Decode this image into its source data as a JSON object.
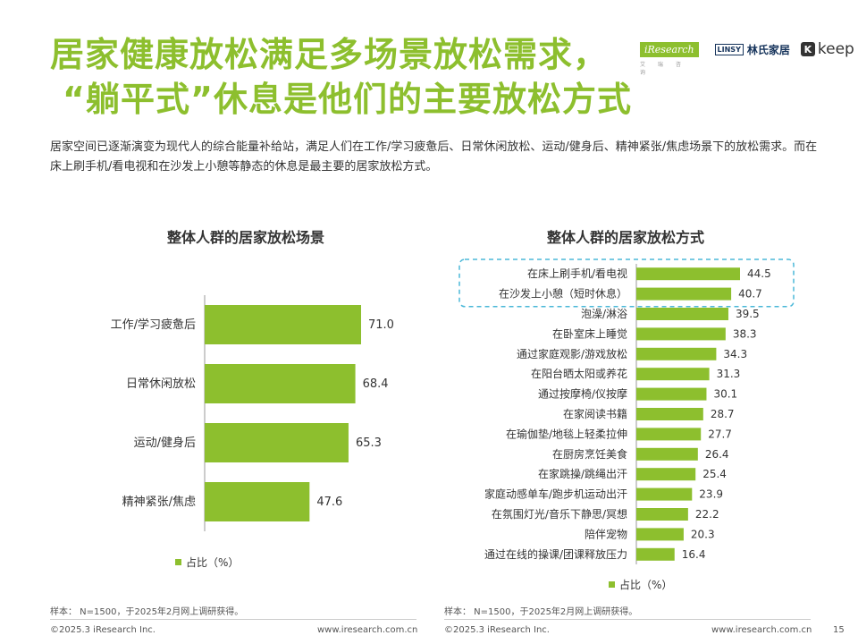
{
  "header": {
    "title_line1": "居家健康放松满足多场景放松需求，",
    "title_line2": "“躺平式”休息是他们的主要放松方式",
    "subtitle": "居家空间已逐渐演变为现代人的综合能量补给站，满足人们在工作/学习疲惫后、日常休闲放松、运动/健身后、精神紧张/焦虑场景下的放松需求。而在床上刷手机/看电视和在沙发上小憩等静态的休息是最主要的居家放松方式。"
  },
  "logos": {
    "iresearch": "iResearch",
    "iresearch_sub": "艾 瑞 咨 询",
    "linsy_box": "LINSY",
    "linsy_text": "林氏家居",
    "keep_k": "K",
    "keep_text": "keep"
  },
  "colors": {
    "accent": "#8DBF2E",
    "highlight_border": "#4BB8D8"
  },
  "left": {
    "note": "样本： N=1500，于2025年2月网上调研获得。",
    "footer_left": "©2025.3 iResearch Inc.",
    "footer_right": "www.iresearch.com.cn"
  },
  "right": {
    "note": "样本： N=1500，于2025年2月网上调研获得。",
    "footer_left": "©2025.3 iResearch Inc.",
    "footer_right": "www.iresearch.com.cn",
    "page_number": "15"
  },
  "chart_data": [
    {
      "type": "bar",
      "orientation": "horizontal",
      "title": "整体人群的居家放松场景",
      "categories": [
        "工作/学习疲惫后",
        "日常休闲放松",
        "运动/健身后",
        "精神紧张/焦虑"
      ],
      "series": [
        {
          "name": "占比（%）",
          "values": [
            71.0,
            68.4,
            65.3,
            47.6
          ]
        }
      ],
      "value_labels": [
        "71.0",
        "68.4",
        "65.3",
        "47.6"
      ],
      "xlim": [
        0,
        100
      ],
      "grid": false,
      "legend_position": "bottom"
    },
    {
      "type": "bar",
      "orientation": "horizontal",
      "title": "整体人群的居家放松方式",
      "categories": [
        "在床上刷手机/看电视",
        "在沙发上小憩（短时休息）",
        "泡澡/淋浴",
        "在卧室床上睡觉",
        "通过家庭观影/游戏放松",
        "在阳台晒太阳或养花",
        "通过按摩椅/仪按摩",
        "在家阅读书籍",
        "在瑜伽垫/地毯上轻柔拉伸",
        "在厨房烹饪美食",
        "在家跳操/跳绳出汗",
        "家庭动感单车/跑步机运动出汗",
        "在氛围灯光/音乐下静思/冥想",
        "陪伴宠物",
        "通过在线的操课/团课释放压力"
      ],
      "series": [
        {
          "name": "占比（%）",
          "values": [
            44.5,
            40.7,
            39.5,
            38.3,
            34.3,
            31.3,
            30.1,
            28.7,
            27.7,
            26.4,
            25.4,
            23.9,
            22.2,
            20.3,
            16.4
          ]
        }
      ],
      "value_labels": [
        "44.5",
        "40.7",
        "39.5",
        "38.3",
        "34.3",
        "31.3",
        "30.1",
        "28.7",
        "27.7",
        "26.4",
        "25.4",
        "23.9",
        "22.2",
        "20.3",
        "16.4"
      ],
      "highlighted_categories": [
        "在床上刷手机/看电视",
        "在沙发上小憩（短时休息）"
      ],
      "grid": false,
      "legend_position": "bottom"
    }
  ]
}
